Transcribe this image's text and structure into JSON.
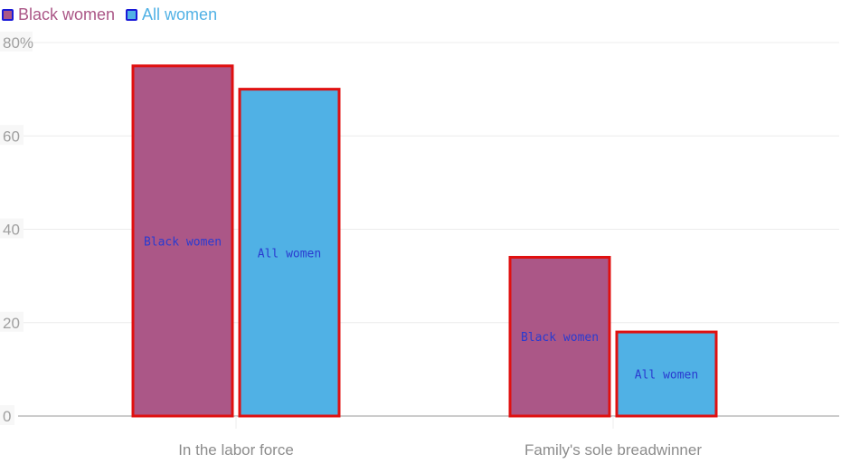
{
  "chart_data": {
    "type": "bar",
    "categories": [
      "In the labor force",
      "Family's sole breadwinner"
    ],
    "series": [
      {
        "name": "Black women",
        "values": [
          75,
          34
        ],
        "color": "#ab5787"
      },
      {
        "name": "All women",
        "values": [
          70,
          18
        ],
        "color": "#50b1e5"
      }
    ],
    "ylim": [
      0,
      80
    ],
    "yticks": [
      0,
      20,
      40,
      60,
      80
    ],
    "ytick_labels": [
      "0",
      "20",
      "40",
      "60",
      "80%"
    ],
    "bar_labels": [
      "Black women",
      "All women"
    ],
    "legend_position": "top-left",
    "grid": true,
    "xlabel": "",
    "ylabel": "",
    "title": ""
  },
  "colors": {
    "bar_outline": "#e01010",
    "legend_outline": "#1a1ad8",
    "grid": "#ececec",
    "axis": "#9a9a9a",
    "bar_label": "#2a3bd0"
  }
}
